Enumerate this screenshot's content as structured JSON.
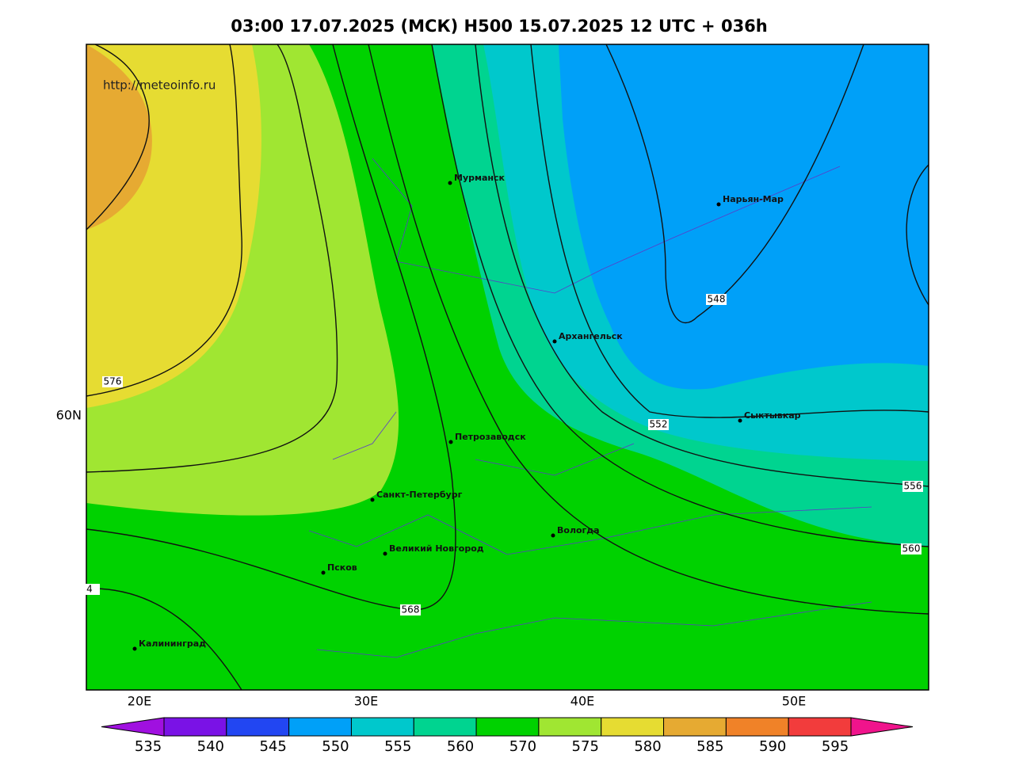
{
  "title": "03:00 17.07.2025 (МСК) H500  15.07.2025 12 UTC + 036h",
  "watermark": "http://meteoinfo.ru",
  "cities": [
    "Мурманск",
    "Нарьян-Мар",
    "Архангельск",
    "Сыктывкар",
    "Петрозаводск",
    "Санкт-Петербург",
    "Вологда",
    "Великий Новгород",
    "Псков",
    "Калининград"
  ],
  "contour_labels": [
    "548",
    "552",
    "556",
    "560",
    "568",
    "576",
    "4"
  ],
  "lon_labels": [
    "20E",
    "30E",
    "40E",
    "50E"
  ],
  "lat_labels": [
    "60N"
  ],
  "colorbar": {
    "labels": [
      "535",
      "540",
      "545",
      "550",
      "555",
      "560",
      "570",
      "575",
      "580",
      "585",
      "590",
      "595"
    ],
    "colors": [
      "#a010e0",
      "#7a12e6",
      "#2246f2",
      "#00a0f8",
      "#00c8cc",
      "#00d490",
      "#00d200",
      "#a0e632",
      "#e6dc32",
      "#e6aa32",
      "#f08228",
      "#f23c3c",
      "#f0148c"
    ]
  }
}
